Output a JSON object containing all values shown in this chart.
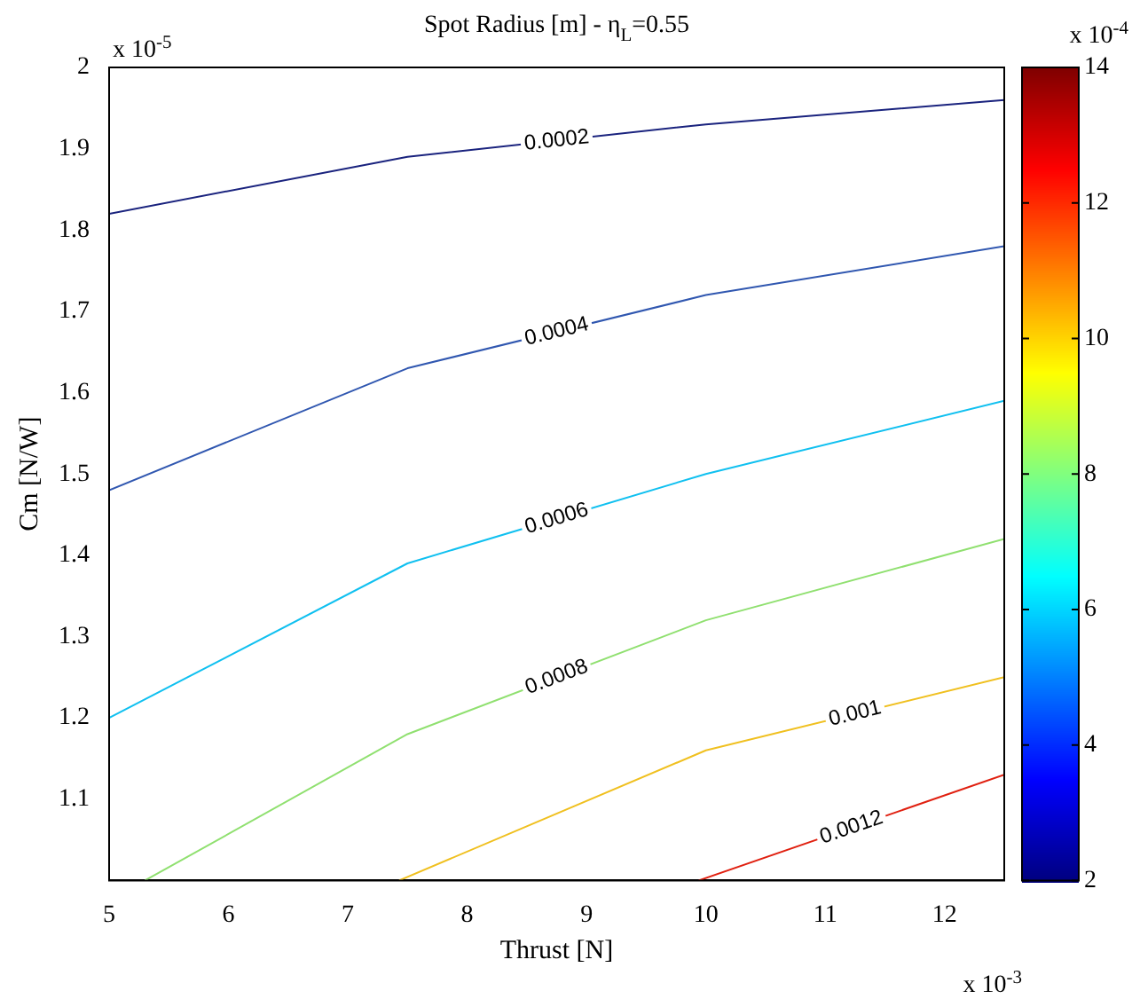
{
  "chart_data": {
    "type": "line",
    "title": "Spot Radius [m] - η$_{L}$=0.55",
    "xlabel": "Thrust [N]",
    "ylabel": "Cm [N/W]",
    "xlim": [
      5,
      12.5
    ],
    "xticks": [
      5,
      6,
      7,
      8,
      9,
      10,
      11,
      12
    ],
    "ylim": [
      1.0,
      2.0
    ],
    "yticks": [
      1.1,
      1.2,
      1.3,
      1.4,
      1.5,
      1.6,
      1.7,
      1.8,
      1.9,
      2
    ],
    "clim": [
      2,
      14
    ],
    "cticks": [
      2,
      4,
      6,
      8,
      10,
      12,
      14
    ],
    "legend": false,
    "marker": "none",
    "line_style": "solid",
    "annotations": [
      "x 10$^{-5}$",
      "x 10$^{-3}$",
      "x 10$^{-4}$"
    ],
    "series": [
      {
        "name": "0.0002",
        "color": "#1a237e",
        "x": [
          5,
          7.5,
          10,
          12.5
        ],
        "values": [
          1.82,
          1.89,
          1.93,
          1.96
        ]
      },
      {
        "name": "0.0004",
        "color": "#3057b0",
        "x": [
          5,
          7.5,
          10,
          12.5
        ],
        "values": [
          1.48,
          1.63,
          1.72,
          1.78
        ]
      },
      {
        "name": "0.0006",
        "color": "#10c0f0",
        "x": [
          5,
          7.5,
          10,
          12.5
        ],
        "values": [
          1.2,
          1.39,
          1.5,
          1.59
        ]
      },
      {
        "name": "0.0008",
        "color": "#90e070",
        "x": [
          5.3,
          7.5,
          10,
          12.5
        ],
        "values": [
          1.0,
          1.18,
          1.32,
          1.42
        ]
      },
      {
        "name": "0.001",
        "color": "#f0c020",
        "x": [
          7.43,
          10,
          12.5
        ],
        "values": [
          1.0,
          1.16,
          1.25
        ]
      },
      {
        "name": "0.0012",
        "color": "#e02010",
        "x": [
          9.94,
          12.5
        ],
        "values": [
          1.0,
          1.13
        ]
      }
    ]
  }
}
